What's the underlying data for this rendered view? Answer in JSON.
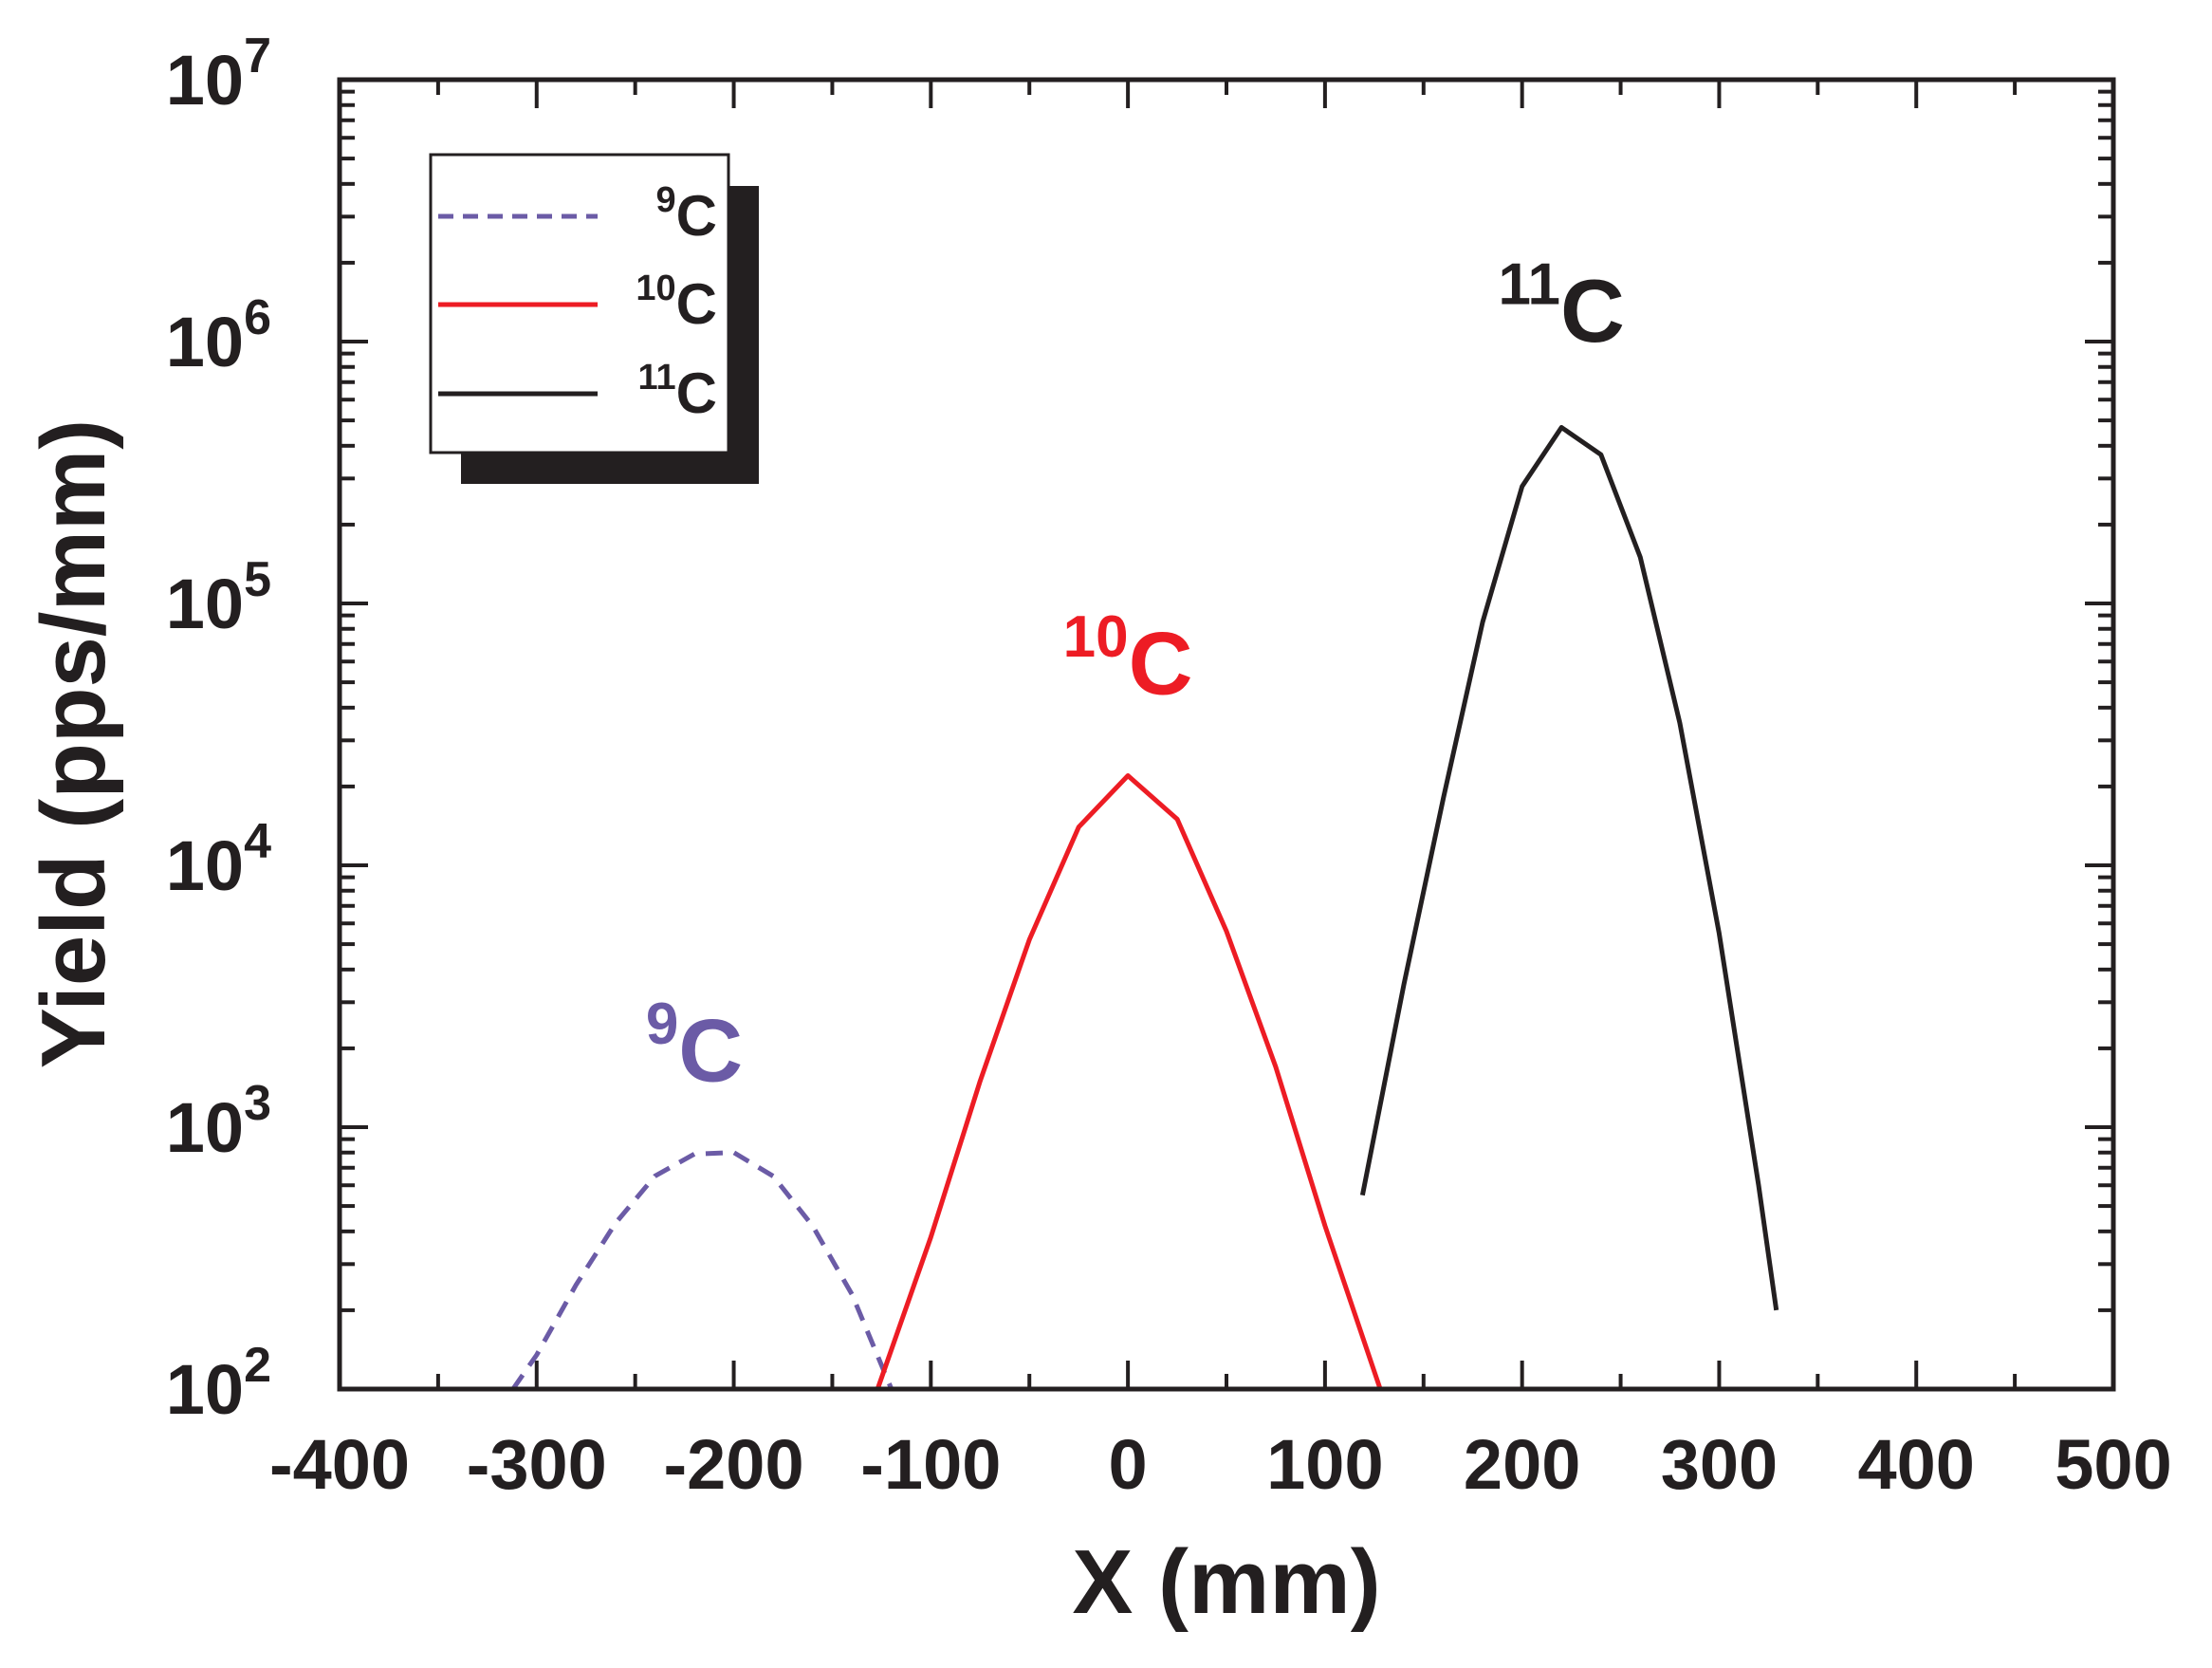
{
  "chart_data": {
    "type": "line",
    "xlabel": "X (mm)",
    "ylabel": "Yield (pps/mm)",
    "xlim": [
      -400,
      500
    ],
    "ylim": [
      100,
      10000000
    ],
    "yscale": "log",
    "grid": false,
    "legend": "top-left",
    "x_ticks": [
      "-400",
      "-300",
      "-200",
      "-100",
      "0",
      "100",
      "200",
      "300",
      "400",
      "500"
    ],
    "y_ticks": [
      {
        "base": "10",
        "exp": "2"
      },
      {
        "base": "10",
        "exp": "3"
      },
      {
        "base": "10",
        "exp": "4"
      },
      {
        "base": "10",
        "exp": "5"
      },
      {
        "base": "10",
        "exp": "6"
      },
      {
        "base": "10",
        "exp": "7"
      }
    ],
    "series": [
      {
        "name": {
          "mass": "9",
          "element": "C"
        },
        "color": "#6b5ba6",
        "style": "dashed",
        "x": [
          -312,
          -300,
          -280,
          -260,
          -240,
          -220,
          -200,
          -180,
          -160,
          -140,
          -120
        ],
        "y": [
          100,
          135,
          250,
          430,
          650,
          790,
          800,
          650,
          420,
          230,
          100
        ]
      },
      {
        "name": {
          "mass": "10",
          "element": "C"
        },
        "color": "#ed1c24",
        "style": "solid",
        "x": [
          -127,
          -100,
          -75,
          -50,
          -25,
          0,
          25,
          50,
          75,
          100,
          128
        ],
        "y": [
          100,
          380,
          1500,
          5200,
          14000,
          22000,
          15000,
          5600,
          1700,
          420,
          100
        ]
      },
      {
        "name": {
          "mass": "11",
          "element": "C"
        },
        "color": "#231f20",
        "style": "solid",
        "x": [
          119,
          140,
          160,
          180,
          200,
          220,
          240,
          260,
          280,
          300,
          320,
          329
        ],
        "y": [
          550,
          3500,
          18000,
          85000,
          280000,
          470000,
          370000,
          150000,
          35000,
          5500,
          600,
          200
        ]
      }
    ],
    "annotations": [
      {
        "mass": "9",
        "element": "C",
        "x": -220,
        "y": 1500,
        "color": "#6b5ba6"
      },
      {
        "mass": "10",
        "element": "C",
        "x": 0,
        "y": 45000,
        "color": "#ed1c24"
      },
      {
        "mass": "11",
        "element": "C",
        "x": 220,
        "y": 1000000,
        "color": "#231f20"
      }
    ]
  }
}
